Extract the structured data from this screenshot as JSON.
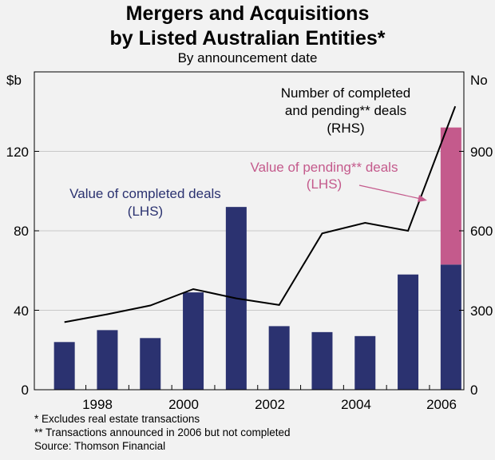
{
  "chart_data": {
    "type": "bar",
    "title_line1": "Mergers and Acquisitions",
    "title_line2": "by Listed Australian Entities*",
    "subtitle": "By announcement date",
    "left_axis_label": "$b",
    "right_axis_label": "No",
    "left_ylim": [
      0,
      160
    ],
    "right_ylim": [
      0,
      1200
    ],
    "left_ticks": [
      "0",
      "40",
      "80",
      "120"
    ],
    "right_ticks": [
      "0",
      "300",
      "600",
      "900"
    ],
    "x_ticks": [
      "1998",
      "2000",
      "2002",
      "2004",
      "2006"
    ],
    "categories": [
      1997,
      1998,
      1999,
      2000,
      2001,
      2002,
      2003,
      2004,
      2005,
      2006
    ],
    "series": [
      {
        "name": "Value of completed deals (LHS)",
        "axis": "left",
        "kind": "bar",
        "color": "#2b3270",
        "values": [
          24,
          30,
          26,
          49,
          92,
          32,
          29,
          27,
          58,
          63
        ]
      },
      {
        "name": "Value of pending** deals (LHS)",
        "axis": "left",
        "kind": "stacked-bar",
        "color": "#c45a8c",
        "values": [
          0,
          0,
          0,
          0,
          0,
          0,
          0,
          0,
          0,
          69
        ]
      },
      {
        "name": "Number of completed and pending** deals (RHS)",
        "axis": "right",
        "kind": "line",
        "color": "#000000",
        "x": [
          1997,
          1998,
          1999,
          2000,
          2001,
          2002,
          2003,
          2004,
          2005,
          2006.1
        ],
        "values": [
          255,
          285,
          318,
          380,
          345,
          320,
          590,
          630,
          600,
          1070
        ]
      }
    ],
    "annotations": {
      "completed_line1": "Value of completed deals",
      "completed_line2": "(LHS)",
      "count_line1": "Number of completed",
      "count_line2": "and pending** deals",
      "count_line3": "(RHS)",
      "pending_line1": "Value of pending** deals",
      "pending_line2": "(LHS)"
    }
  },
  "footnotes": {
    "note1": "*   Excludes real estate transactions",
    "note2": "** Transactions announced in 2006 but not completed",
    "source": "Source: Thomson Financial"
  }
}
